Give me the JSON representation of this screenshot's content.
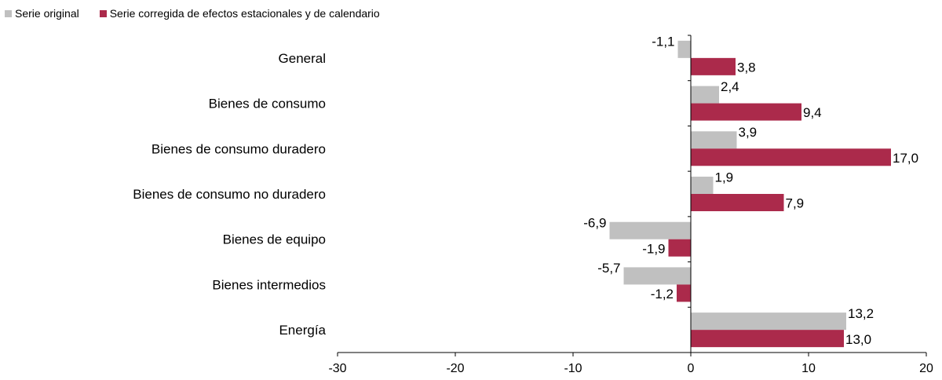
{
  "legend": {
    "items": [
      {
        "label": "Serie original",
        "color": "#c0c0c0"
      },
      {
        "label": "Serie corregida de efectos estacionales y de calendario",
        "color": "#ab2a4b"
      }
    ]
  },
  "chart_data": {
    "type": "bar",
    "orientation": "horizontal",
    "categories": [
      "General",
      "Bienes de consumo",
      "Bienes de consumo duradero",
      "Bienes de consumo no duradero",
      "Bienes de equipo",
      "Bienes intermedios",
      "Energía"
    ],
    "series": [
      {
        "name": "Serie original",
        "color": "#c0c0c0",
        "values": [
          -1.1,
          2.4,
          3.9,
          1.9,
          -6.9,
          -5.7,
          13.2
        ],
        "labels": [
          "-1,1",
          "2,4",
          "3,9",
          "1,9",
          "-6,9",
          "-5,7",
          "13,2"
        ]
      },
      {
        "name": "Serie corregida de efectos estacionales y de calendario",
        "color": "#ab2a4b",
        "values": [
          3.8,
          9.4,
          17.0,
          7.9,
          -1.9,
          -1.2,
          13.0
        ],
        "labels": [
          "3,8",
          "9,4",
          "17,0",
          "7,9",
          "-1,9",
          "-1,2",
          "13,0"
        ]
      }
    ],
    "xlim": [
      -30,
      20
    ],
    "xticks": [
      -30,
      -20,
      -10,
      0,
      10,
      20
    ],
    "xtick_labels": [
      "-30",
      "-20",
      "-10",
      "0",
      "10",
      "20"
    ],
    "title": "",
    "xlabel": "",
    "ylabel": "",
    "grid": false,
    "legend_position": "top-left"
  }
}
